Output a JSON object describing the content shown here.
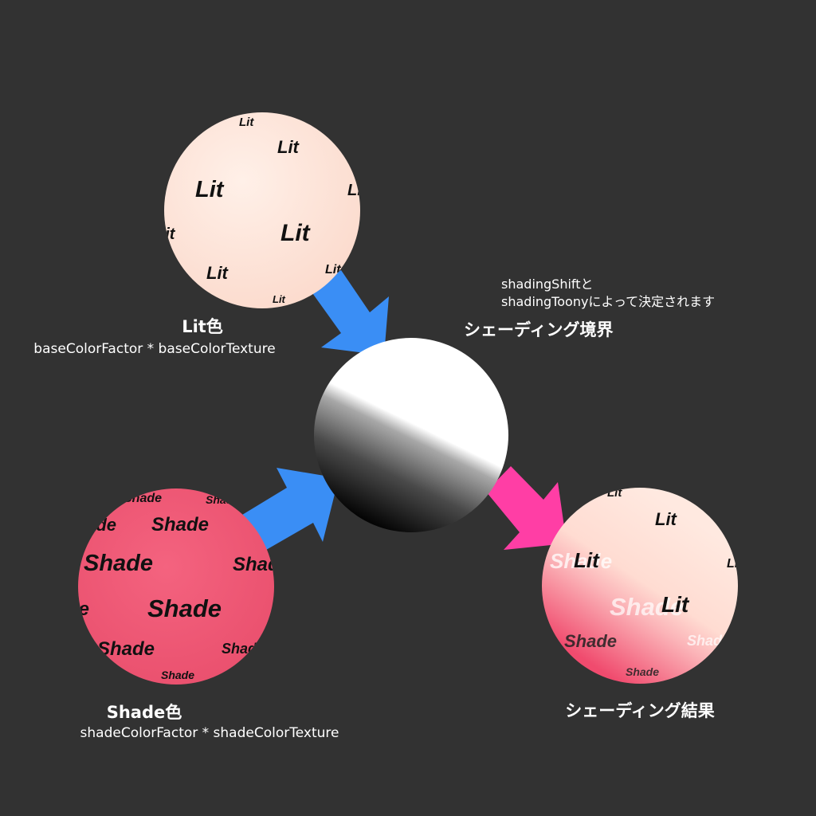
{
  "colors": {
    "background": "#323232",
    "lit": "#ffe4da",
    "shade": "#f05a78",
    "arrow_input": "#3a8ef5",
    "arrow_output": "#ff3ea5"
  },
  "lit": {
    "title": "Lit色",
    "subtitle": "baseColorFactor * baseColorTexture",
    "pattern_word": "Lit"
  },
  "shade": {
    "title": "Shade色",
    "subtitle": "shadeColorFactor * shadeColorTexture",
    "pattern_word": "Shade"
  },
  "boundary": {
    "note_line1": "shadingShiftと",
    "note_line2": "shadingToonyによって決定されます",
    "title": "シェーディング境界"
  },
  "result": {
    "title": "シェーディング結果"
  }
}
